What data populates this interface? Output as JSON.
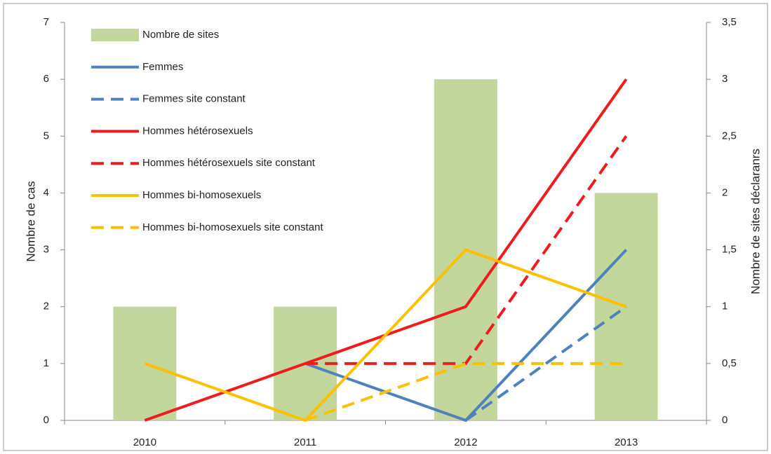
{
  "chart_data": {
    "type": "combo",
    "categories": [
      "2010",
      "2011",
      "2012",
      "2013"
    ],
    "y_label": "Nombre de cas",
    "y2_label": "Nombre de sites déclaranrs",
    "ylim": [
      0,
      7
    ],
    "yticks": [
      0,
      1,
      2,
      3,
      4,
      5,
      6,
      7
    ],
    "y2lim": [
      0,
      3.5
    ],
    "y2ticks": [
      0,
      {
        "value": 0.5,
        "label": "0,5"
      },
      1,
      {
        "value": 1.5,
        "label": "1,5"
      },
      2,
      {
        "value": 2.5,
        "label": "2,5"
      },
      3,
      {
        "value": 3.5,
        "label": "3,5"
      }
    ],
    "legend": "upper left",
    "series": [
      {
        "name": "Nombre de sites",
        "type": "bar",
        "axis": "y2",
        "color": "#c3d69b",
        "values": [
          1,
          1,
          3,
          2
        ]
      },
      {
        "name": "Femmes",
        "type": "line",
        "color": "#4f81bd",
        "dashed": false,
        "values": [
          null,
          1,
          0,
          3
        ]
      },
      {
        "name": "Femmes site constant",
        "type": "line",
        "color": "#4f81bd",
        "dashed": true,
        "values": [
          null,
          null,
          0,
          2
        ]
      },
      {
        "name": "Hommes hétérosexuels",
        "type": "line",
        "color": "#ee1c1c",
        "dashed": false,
        "values": [
          0,
          1,
          2,
          6
        ]
      },
      {
        "name": "Hommes hétérosexuels site constant",
        "type": "line",
        "color": "#ee1c1c",
        "dashed": true,
        "values": [
          null,
          1,
          1,
          5
        ]
      },
      {
        "name": "Hommes bi-homosexuels",
        "type": "line",
        "color": "#ffc000",
        "dashed": false,
        "values": [
          1,
          0,
          3,
          2
        ]
      },
      {
        "name": "Hommes bi-homosexuels site constant",
        "type": "line",
        "color": "#ffc000",
        "dashed": true,
        "values": [
          null,
          0,
          1,
          1
        ]
      }
    ]
  }
}
